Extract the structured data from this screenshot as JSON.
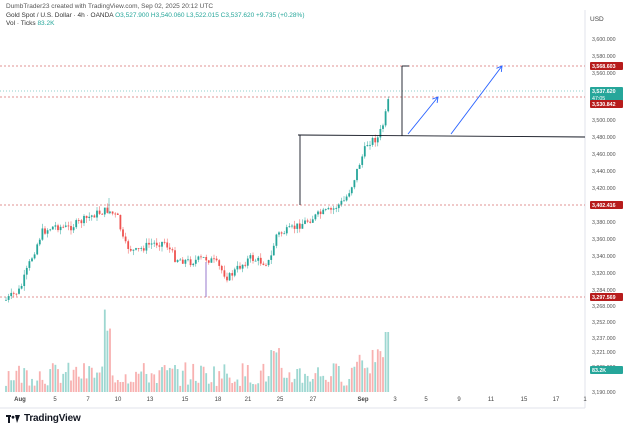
{
  "header": {
    "created": "DumbTrader23 created with TradingView.com, Sep 02, 2025 20:12 UTC",
    "symbol": "Gold Spot / U.S. Dollar · 4h · OANDA",
    "ohlc": "O3,527.900 H3,540.060 L3,522.015 C3,537.620 +9.735 (+0.28%)",
    "volume_label": "Vol · Ticks",
    "volume_value": "83.2K"
  },
  "axis": {
    "currency": "USD",
    "price_ticks": [
      "3,600.000",
      "3,580.000",
      "3,560.000",
      "3,520.000",
      "3,500.000",
      "3,480.000",
      "3,460.000",
      "3,440.000",
      "3,420.000",
      "3,380.000",
      "3,360.000",
      "3,340.000",
      "3,320.000",
      "3,284.000",
      "3,268.000",
      "3,252.000",
      "3,237.000",
      "3,221.000",
      "3,205.000",
      "3,190.000"
    ],
    "time_ticks": [
      "Aug",
      "5",
      "7",
      "10",
      "13",
      "15",
      "18",
      "21",
      "25",
      "27",
      "Sep",
      "3",
      "5",
      "9",
      "11",
      "15",
      "17",
      "1"
    ]
  },
  "price_tags": [
    {
      "label": "3,568.603",
      "color": "#b71c1c"
    },
    {
      "label": "3,537.620",
      "sub": "47:05",
      "color": "#26a69a"
    },
    {
      "label": "3,530.842",
      "color": "#b71c1c"
    },
    {
      "label": "3,402.416",
      "color": "#b71c1c"
    },
    {
      "label": "3,297.569",
      "color": "#b71c1c"
    },
    {
      "label": "83.2K",
      "color": "#26a69a"
    }
  ],
  "colors": {
    "up": "#26a69a",
    "down": "#ef5350",
    "level": "#c62828",
    "arrow": "#2962ff"
  },
  "brand": {
    "name": "TradingView"
  }
}
